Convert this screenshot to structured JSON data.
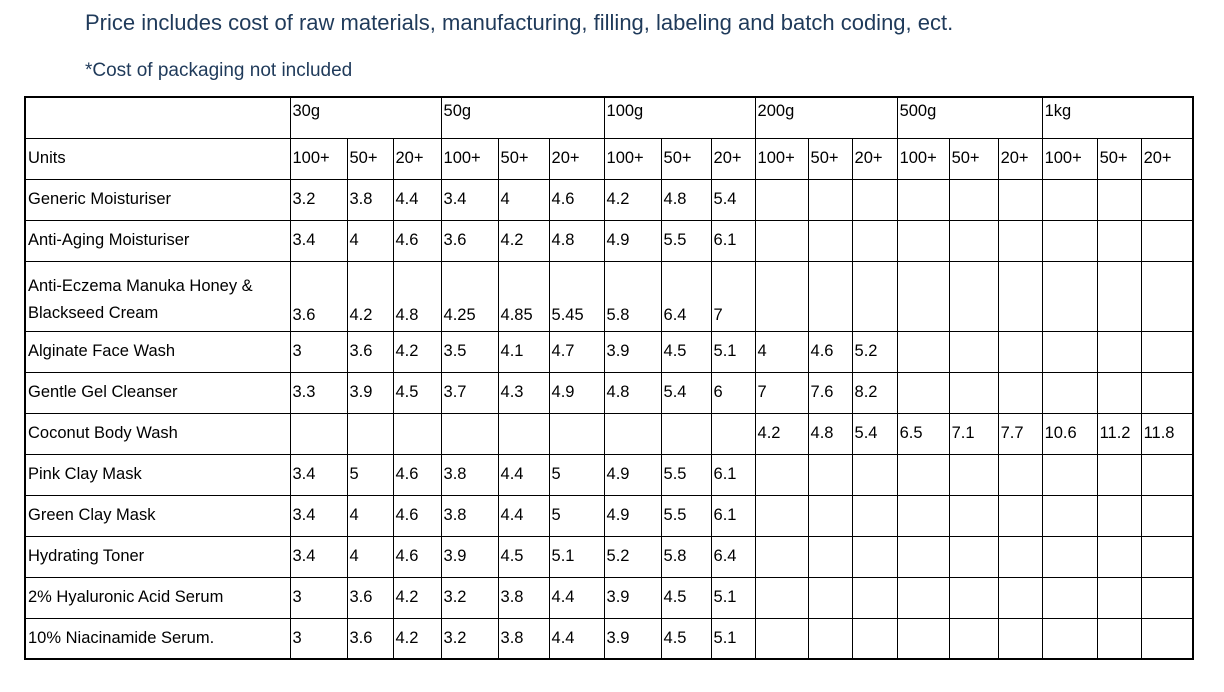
{
  "heading": "Price includes cost of raw materials, manufacturing, filling, labeling and batch coding, ect.",
  "note": "*Cost of packaging not included",
  "table": {
    "units_label": "Units",
    "sizes": [
      "30g",
      "50g",
      "100g",
      "200g",
      "500g",
      "1kg"
    ],
    "tiers": [
      "100+",
      "50+",
      "20+"
    ],
    "rows": [
      {
        "name": "Generic Moisturiser",
        "values": [
          "3.2",
          "3.8",
          "4.4",
          "3.4",
          "4",
          "4.6",
          "4.2",
          "4.8",
          "5.4",
          "",
          "",
          "",
          "",
          "",
          "",
          "",
          "",
          ""
        ]
      },
      {
        "name": "Anti-Aging Moisturiser",
        "values": [
          "3.4",
          "4",
          "4.6",
          "3.6",
          "4.2",
          "4.8",
          "4.9",
          "5.5",
          "6.1",
          "",
          "",
          "",
          "",
          "",
          "",
          "",
          "",
          ""
        ]
      },
      {
        "name": "Anti-Eczema Manuka Honey & Blackseed Cream",
        "values": [
          "3.6",
          "4.2",
          "4.8",
          "4.25",
          "4.85",
          "5.45",
          "5.8",
          "6.4",
          "7",
          "",
          "",
          "",
          "",
          "",
          "",
          "",
          "",
          ""
        ]
      },
      {
        "name": "Alginate Face Wash",
        "values": [
          "3",
          "3.6",
          "4.2",
          "3.5",
          "4.1",
          "4.7",
          "3.9",
          "4.5",
          "5.1",
          "4",
          "4.6",
          "5.2",
          "",
          "",
          "",
          "",
          "",
          ""
        ]
      },
      {
        "name": "Gentle Gel Cleanser",
        "values": [
          "3.3",
          "3.9",
          "4.5",
          "3.7",
          "4.3",
          "4.9",
          "4.8",
          "5.4",
          "6",
          "7",
          "7.6",
          "8.2",
          "",
          "",
          "",
          "",
          "",
          ""
        ]
      },
      {
        "name": "Coconut Body Wash",
        "values": [
          "",
          "",
          "",
          "",
          "",
          "",
          "",
          "",
          "",
          "4.2",
          "4.8",
          "5.4",
          "6.5",
          "7.1",
          "7.7",
          "10.6",
          "11.2",
          "11.8"
        ]
      },
      {
        "name": "Pink Clay Mask",
        "values": [
          "3.4",
          "5",
          "4.6",
          "3.8",
          "4.4",
          "5",
          "4.9",
          "5.5",
          "6.1",
          "",
          "",
          "",
          "",
          "",
          "",
          "",
          "",
          ""
        ]
      },
      {
        "name": "Green Clay Mask",
        "values": [
          "3.4",
          "4",
          "4.6",
          "3.8",
          "4.4",
          "5",
          "4.9",
          "5.5",
          "6.1",
          "",
          "",
          "",
          "",
          "",
          "",
          "",
          "",
          ""
        ]
      },
      {
        "name": "Hydrating Toner",
        "values": [
          "3.4",
          "4",
          "4.6",
          "3.9",
          "4.5",
          "5.1",
          "5.2",
          "5.8",
          "6.4",
          "",
          "",
          "",
          "",
          "",
          "",
          "",
          "",
          ""
        ]
      },
      {
        "name": "2% Hyaluronic Acid Serum",
        "values": [
          "3",
          "3.6",
          "4.2",
          "3.2",
          "3.8",
          "4.4",
          "3.9",
          "4.5",
          "5.1",
          "",
          "",
          "",
          "",
          "",
          "",
          "",
          "",
          ""
        ]
      },
      {
        "name": "10% Niacinamide Serum.",
        "values": [
          "3",
          "3.6",
          "4.2",
          "3.2",
          "3.8",
          "4.4",
          "3.9",
          "4.5",
          "5.1",
          "",
          "",
          "",
          "",
          "",
          "",
          "",
          "",
          ""
        ]
      }
    ]
  }
}
